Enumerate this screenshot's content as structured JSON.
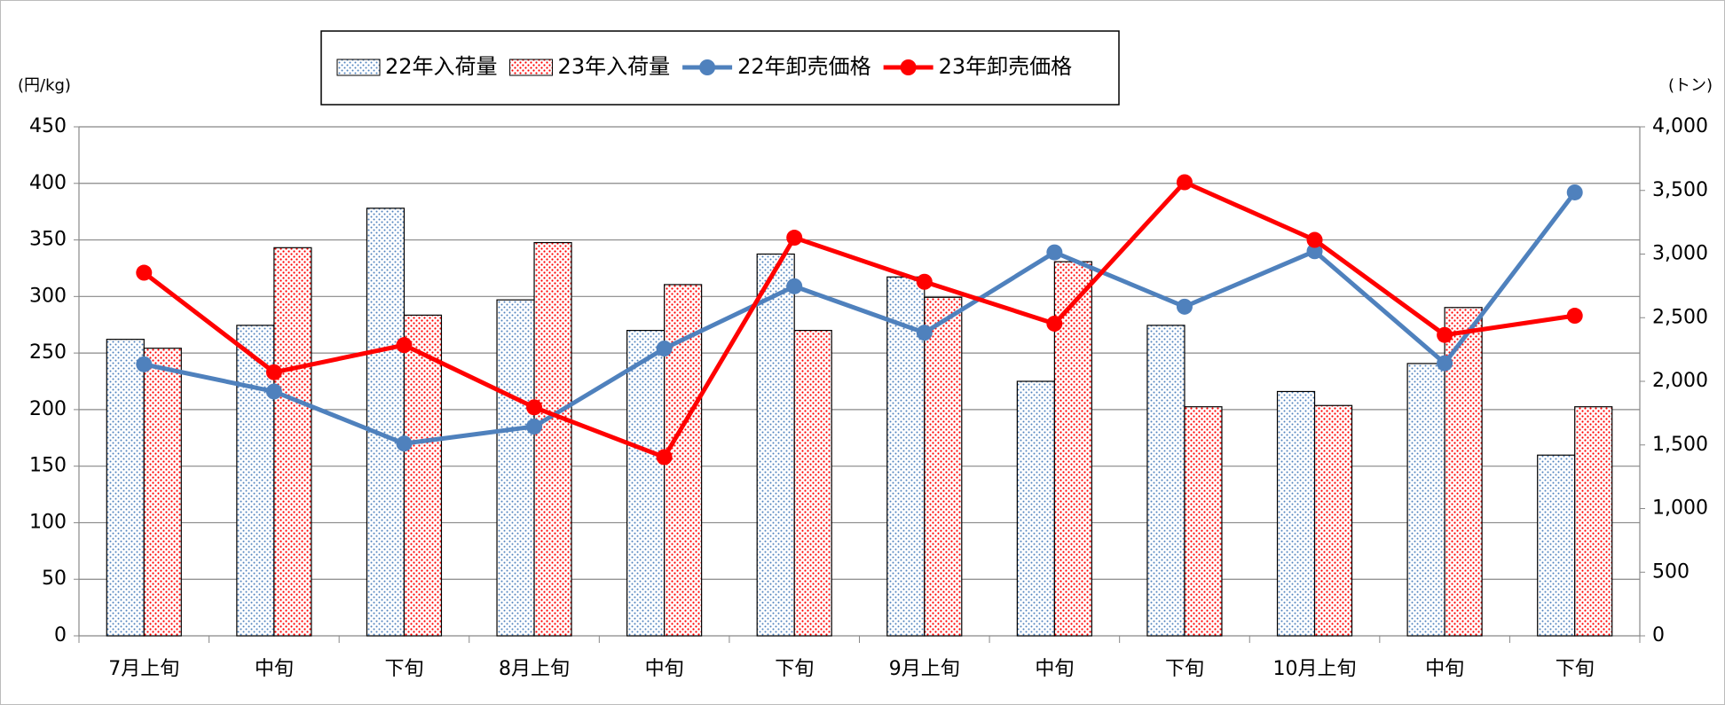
{
  "chart_data": {
    "type": "bar-line",
    "y_unit": "(円/kg)",
    "y2_unit": "(トン)",
    "categories": [
      "7月上旬",
      "中旬",
      "下旬",
      "8月上旬",
      "中旬",
      "下旬",
      "9月上旬",
      "中旬",
      "下旬",
      "10月上旬",
      "中旬",
      "下旬"
    ],
    "series": [
      {
        "name": "22年入荷量",
        "type": "bar",
        "axis": "y2",
        "color": "#4f81bd",
        "values": [
          2330,
          2440,
          3360,
          2640,
          2400,
          3000,
          2820,
          2000,
          2440,
          1920,
          2140,
          1420
        ]
      },
      {
        "name": "23年入荷量",
        "type": "bar",
        "axis": "y2",
        "color": "#ff0000",
        "values": [
          2260,
          3050,
          2520,
          3090,
          2760,
          2400,
          2660,
          2940,
          1800,
          1810,
          2580,
          1800
        ]
      },
      {
        "name": "22年卸売価格",
        "type": "line",
        "axis": "y",
        "color": "#4f81bd",
        "values": [
          240,
          216,
          170,
          185,
          254,
          309,
          268,
          339,
          291,
          340,
          241,
          392
        ]
      },
      {
        "name": "23年卸売価格",
        "type": "line",
        "axis": "y",
        "color": "#ff0000",
        "values": [
          321,
          233,
          257,
          202,
          158,
          352,
          313,
          276,
          401,
          350,
          266,
          283
        ]
      }
    ],
    "ylim": [
      0,
      450
    ],
    "yticks": [
      0,
      50,
      100,
      150,
      200,
      250,
      300,
      350,
      400,
      450
    ],
    "y2lim": [
      0,
      4000
    ],
    "y2ticks": [
      0,
      500,
      {
        "value": 1000,
        "label": "1,000"
      },
      {
        "value": 1500,
        "label": "1,500"
      },
      {
        "value": 2000,
        "label": "2,000"
      },
      {
        "value": 2500,
        "label": "2,500"
      },
      {
        "value": 3000,
        "label": "3,000"
      },
      {
        "value": 3500,
        "label": "3,500"
      },
      {
        "value": 4000,
        "label": "4,000"
      }
    ],
    "grid": true,
    "legend": "top"
  }
}
